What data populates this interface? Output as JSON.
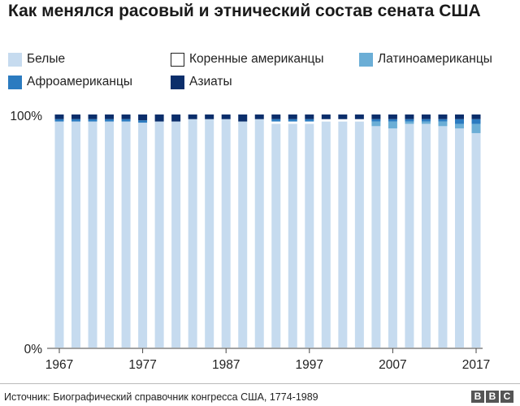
{
  "title": "Как менялся расовый и этнический состав сената США",
  "legend": [
    {
      "key": "white",
      "label": "Белые",
      "color": "#c6dbef"
    },
    {
      "key": "native",
      "label": "Коренные американцы",
      "color": "#ffffff"
    },
    {
      "key": "latino",
      "label": "Латиноамериканцы",
      "color": "#6baed6"
    },
    {
      "key": "black",
      "label": "Афроамериканцы",
      "color": "#2b7bc0"
    },
    {
      "key": "asian",
      "label": "Азиаты",
      "color": "#0b2e6b"
    }
  ],
  "source": "Источник: Биографический справочник конгресса США, 1774-1989",
  "logo": "BBC",
  "chart_data": {
    "type": "bar",
    "stacked": true,
    "ylim": [
      0,
      100
    ],
    "y_tick_labels": [
      "0%",
      "100%"
    ],
    "x_tick_labels": [
      "1967",
      "1977",
      "1987",
      "1997",
      "2007",
      "2017"
    ],
    "categories": [
      "1967",
      "1969",
      "1971",
      "1973",
      "1975",
      "1977",
      "1979",
      "1981",
      "1983",
      "1985",
      "1987",
      "1989",
      "1991",
      "1993",
      "1995",
      "1997",
      "1999",
      "2001",
      "2003",
      "2005",
      "2007",
      "2009",
      "2011",
      "2013",
      "2015",
      "2017"
    ],
    "series": [
      {
        "name": "Белые",
        "values": [
          97,
          97,
          97,
          97,
          97,
          96.5,
          97,
          97,
          98,
          98,
          98,
          97,
          98,
          96,
          96,
          96,
          97,
          97,
          97,
          95,
          94,
          96,
          96,
          95,
          94,
          92
        ]
      },
      {
        "name": "Коренные американцы",
        "values": [
          0,
          0,
          0,
          0,
          0,
          0,
          0,
          0,
          0,
          0,
          0,
          0,
          0,
          1,
          1,
          1,
          1,
          1,
          1,
          0,
          0,
          0,
          0,
          0,
          0,
          0
        ]
      },
      {
        "name": "Латиноамериканцы",
        "values": [
          0,
          0,
          0,
          0,
          0,
          0,
          0,
          0,
          0,
          0,
          0,
          0,
          0,
          0,
          0,
          0,
          0,
          0,
          0,
          2,
          3,
          1,
          1,
          2,
          2,
          4
        ]
      },
      {
        "name": "Афроамериканцы",
        "values": [
          1,
          1,
          1,
          1,
          1,
          1,
          0,
          0,
          0,
          0,
          0,
          0,
          0,
          1,
          1,
          1,
          0,
          0,
          0,
          1,
          1,
          1,
          1,
          1,
          2,
          2
        ]
      },
      {
        "name": "Азиаты",
        "values": [
          2,
          2,
          2,
          2,
          2,
          2.5,
          3,
          3,
          2,
          2,
          2,
          3,
          2,
          2,
          2,
          2,
          2,
          2,
          2,
          2,
          2,
          2,
          2,
          2,
          2,
          2
        ]
      }
    ]
  }
}
